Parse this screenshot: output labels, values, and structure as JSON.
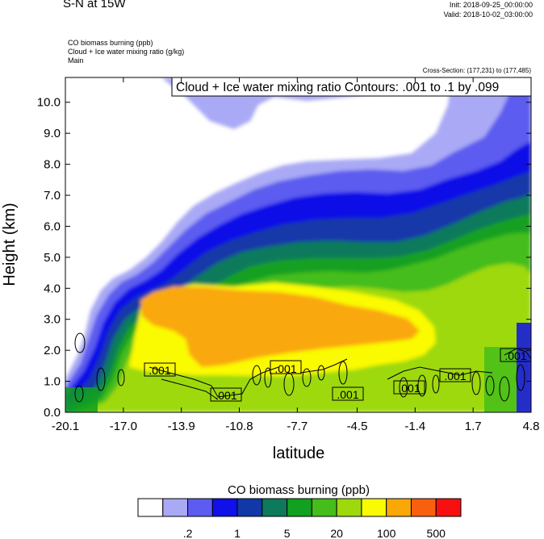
{
  "header": {
    "title": "S-N at 15W",
    "init": "Init: 2018-09-25_00:00:00",
    "valid": "Valid: 2018-10-02_03:00:00",
    "field1": "CO biomass burning   (ppb)",
    "field2": "Cloud + Ice water mixing ratio   (g/kg)",
    "field3": "Main",
    "cross_section": "Cross-Section: (177,231) to (177,485)"
  },
  "chart_data": {
    "type": "heatmap",
    "title": "",
    "xlabel": "latitude",
    "ylabel": "Height (km)",
    "xlim": [
      -20.1,
      4.8
    ],
    "ylim": [
      0.0,
      10.8
    ],
    "x_ticks": [
      "-20.1",
      "-17.0",
      "-13.9",
      "-10.8",
      "-7.7",
      "-4.5",
      "-1.4",
      "1.7",
      "4.8"
    ],
    "y_ticks": [
      "0.0",
      "1.0",
      "2.0",
      "3.0",
      "4.0",
      "5.0",
      "6.0",
      "7.0",
      "8.0",
      "9.0",
      "10.0"
    ],
    "contour_title": "Cloud + Ice water mixing ratio Contours: .001 to .1 by .099",
    "contour_labels": [
      ".001",
      ".001",
      ".001",
      ".001",
      ".001",
      ".001",
      ".001"
    ],
    "colorbar": {
      "title": "CO biomass burning  (ppb)",
      "colors": [
        "#ffffff",
        "#a9a9f5",
        "#5c5cf0",
        "#1010e8",
        "#1238a8",
        "#0e7a5c",
        "#12a020",
        "#45bd1a",
        "#9ed90e",
        "#fafa05",
        "#f9a808",
        "#f86010",
        "#f81010"
      ],
      "tick_labels": [
        ".2",
        "1",
        "5",
        "20",
        "100",
        "500"
      ]
    }
  }
}
